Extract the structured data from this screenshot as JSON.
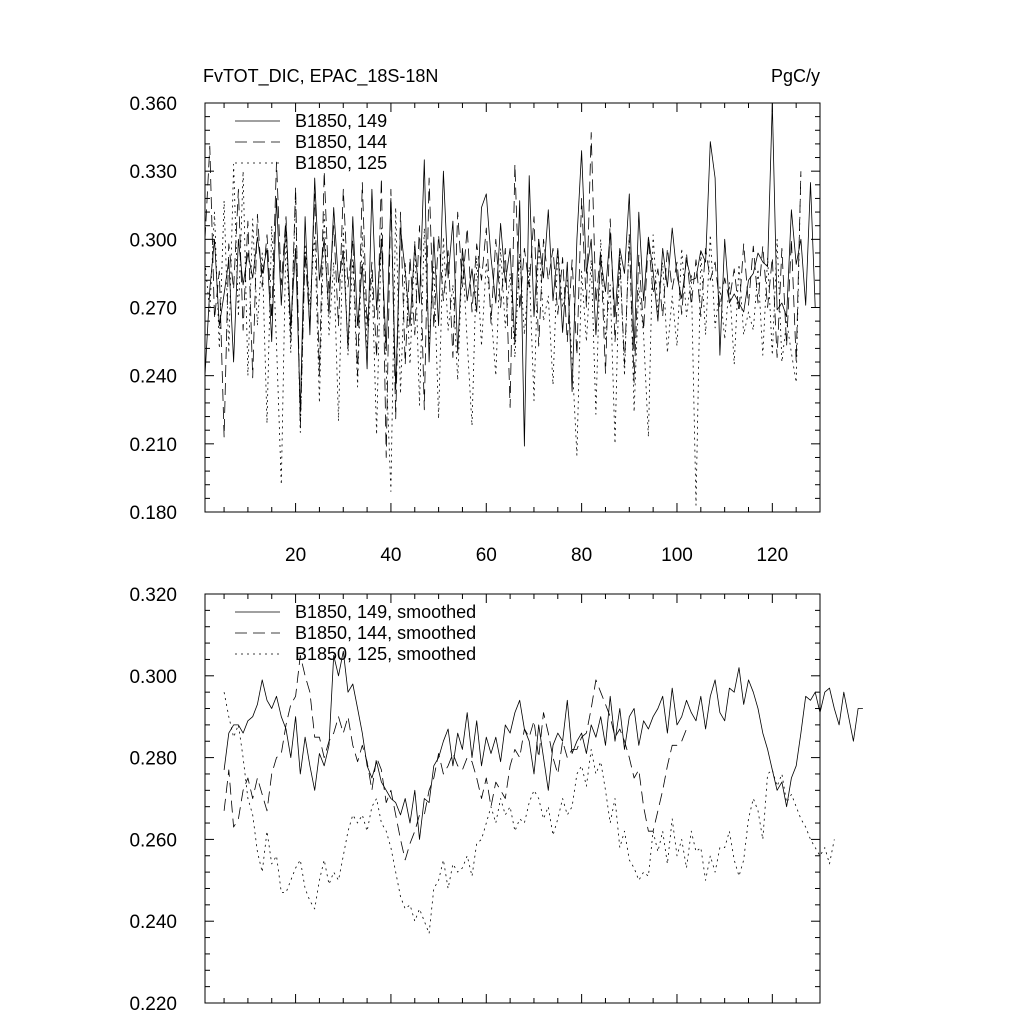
{
  "chart_data": [
    {
      "type": "line",
      "title": "FvTOT_DIC, EPAC_18S-18N",
      "units": "PgC/y",
      "xlim": [
        1,
        130
      ],
      "ylim": [
        0.18,
        0.36
      ],
      "xticks": [
        20,
        40,
        60,
        80,
        100,
        120
      ],
      "yticks": [
        "0.180",
        "0.210",
        "0.240",
        "0.270",
        "0.300",
        "0.330",
        "0.360"
      ],
      "legend_position": "top-left",
      "series": [
        {
          "name": "B1850, 149",
          "style": "solid",
          "x_start": 1,
          "values": [
            0.24,
            0.278,
            0.3,
            0.262,
            0.276,
            0.291,
            0.246,
            0.3,
            0.28,
            0.294,
            0.283,
            0.301,
            0.285,
            0.296,
            0.255,
            0.318,
            0.271,
            0.307,
            0.262,
            0.296,
            0.224,
            0.31,
            0.258,
            0.327,
            0.282,
            0.3,
            0.267,
            0.314,
            0.281,
            0.295,
            0.252,
            0.31,
            0.262,
            0.289,
            0.243,
            0.322,
            0.269,
            0.3,
            0.251,
            0.318,
            0.234,
            0.305,
            0.286,
            0.262,
            0.298,
            0.272,
            0.335,
            0.246,
            0.301,
            0.262,
            0.33,
            0.283,
            0.308,
            0.25,
            0.296,
            0.273,
            0.287,
            0.268,
            0.314,
            0.32,
            0.292,
            0.272,
            0.307,
            0.281,
            0.296,
            0.254,
            0.317,
            0.209,
            0.328,
            0.266,
            0.3,
            0.283,
            0.313,
            0.273,
            0.296,
            0.259,
            0.29,
            0.233,
            0.3,
            0.339,
            0.285,
            0.3,
            0.258,
            0.291,
            0.277,
            0.303,
            0.266,
            0.296,
            0.285,
            0.32,
            0.251,
            0.312,
            0.273,
            0.301,
            0.286,
            0.264,
            0.296,
            0.279,
            0.305,
            0.284,
            0.274,
            0.291,
            0.282,
            0.283,
            0.295,
            0.29,
            0.343,
            0.327,
            0.249,
            0.3,
            0.272,
            0.276,
            0.272,
            0.268,
            0.282,
            0.285,
            0.294,
            0.29,
            0.288,
            0.36,
            0.269,
            0.272,
            0.266,
            0.313,
            0.289,
            0.3,
            0.271,
            0.325,
            0.27
          ]
        },
        {
          "name": "B1850, 144",
          "style": "dashed",
          "x_start": 1,
          "values": [
            0.3,
            0.341,
            0.265,
            0.286,
            0.213,
            0.298,
            0.278,
            0.322,
            0.26,
            0.308,
            0.239,
            0.311,
            0.279,
            0.302,
            0.265,
            0.334,
            0.28,
            0.31,
            0.255,
            0.323,
            0.217,
            0.294,
            0.261,
            0.32,
            0.24,
            0.33,
            0.276,
            0.306,
            0.262,
            0.322,
            0.279,
            0.3,
            0.24,
            0.325,
            0.262,
            0.29,
            0.248,
            0.327,
            0.204,
            0.322,
            0.221,
            0.312,
            0.245,
            0.292,
            0.258,
            0.306,
            0.225,
            0.327,
            0.261,
            0.302,
            0.273,
            0.295,
            0.248,
            0.312,
            0.279,
            0.305,
            0.268,
            0.298,
            0.282,
            0.305,
            0.263,
            0.3,
            0.27,
            0.296,
            0.226,
            0.333,
            0.269,
            0.296,
            0.279,
            0.31,
            0.253,
            0.3,
            0.282,
            0.296,
            0.267,
            0.292,
            0.255,
            0.291,
            0.249,
            0.318,
            0.27,
            0.347,
            0.272,
            0.295,
            0.241,
            0.309,
            0.255,
            0.291,
            0.245,
            0.301,
            0.237,
            0.293,
            0.26,
            0.3,
            0.276,
            0.287,
            0.266,
            0.296,
            0.278,
            0.29,
            0.267,
            0.294,
            0.271,
            0.291,
            0.266,
            0.296,
            0.282,
            0.29,
            0.27,
            0.283,
            0.273,
            0.287,
            0.268,
            0.298,
            0.271,
            0.297,
            0.272,
            0.297,
            0.27,
            0.292,
            0.248,
            0.296,
            0.253,
            0.3,
            0.246,
            0.33
          ]
        },
        {
          "name": "B1850, 125",
          "style": "dotted",
          "x_start": 1,
          "values": [
            0.29,
            0.268,
            0.312,
            0.252,
            0.317,
            0.25,
            0.333,
            0.266,
            0.33,
            0.24,
            0.309,
            0.262,
            0.294,
            0.219,
            0.306,
            0.254,
            0.192,
            0.302,
            0.25,
            0.32,
            0.215,
            0.298,
            0.271,
            0.302,
            0.228,
            0.311,
            0.258,
            0.29,
            0.22,
            0.305,
            0.249,
            0.292,
            0.235,
            0.303,
            0.252,
            0.285,
            0.214,
            0.305,
            0.243,
            0.189,
            0.314,
            0.232,
            0.29,
            0.245,
            0.299,
            0.227,
            0.305,
            0.254,
            0.288,
            0.221,
            0.301,
            0.26,
            0.28,
            0.238,
            0.294,
            0.255,
            0.218,
            0.292,
            0.253,
            0.29,
            0.268,
            0.24,
            0.296,
            0.261,
            0.285,
            0.248,
            0.294,
            0.258,
            0.288,
            0.229,
            0.3,
            0.264,
            0.275,
            0.236,
            0.296,
            0.27,
            0.282,
            0.247,
            0.205,
            0.286,
            0.255,
            0.291,
            0.223,
            0.3,
            0.256,
            0.28,
            0.21,
            0.295,
            0.24,
            0.303,
            0.224,
            0.279,
            0.258,
            0.213,
            0.302,
            0.268,
            0.29,
            0.25,
            0.275,
            0.253,
            0.296,
            0.266,
            0.284,
            0.183,
            0.294,
            0.258,
            0.302,
            0.261,
            0.279,
            0.256,
            0.281,
            0.245,
            0.289,
            0.258,
            0.268,
            0.26,
            0.287,
            0.249,
            0.292,
            0.249,
            0.3,
            0.246,
            0.264,
            0.25,
            0.237,
            0.33
          ]
        }
      ]
    },
    {
      "type": "line",
      "title": "",
      "xlim": [
        1,
        130
      ],
      "ylim": [
        0.22,
        0.32
      ],
      "yticks": [
        "0.220",
        "0.240",
        "0.260",
        "0.280",
        "0.300",
        "0.320"
      ],
      "legend_position": "top-left",
      "series": [
        {
          "name": "B1850, 149, smoothed",
          "style": "solid",
          "x_start": 5,
          "values": [
            0.277,
            0.286,
            0.288,
            0.288,
            0.286,
            0.289,
            0.29,
            0.293,
            0.299,
            0.294,
            0.292,
            0.295,
            0.29,
            0.287,
            0.28,
            0.29,
            0.276,
            0.285,
            0.278,
            0.272,
            0.281,
            0.278,
            0.283,
            0.305,
            0.3,
            0.306,
            0.296,
            0.298,
            0.292,
            0.286,
            0.278,
            0.275,
            0.279,
            0.274,
            0.272,
            0.27,
            0.269,
            0.266,
            0.27,
            0.264,
            0.272,
            0.26,
            0.27,
            0.269,
            0.278,
            0.28,
            0.284,
            0.287,
            0.278,
            0.286,
            0.282,
            0.291,
            0.28,
            0.289,
            0.278,
            0.285,
            0.281,
            0.285,
            0.279,
            0.288,
            0.286,
            0.291,
            0.294,
            0.287,
            0.284,
            0.276,
            0.288,
            0.28,
            0.272,
            0.283,
            0.286,
            0.284,
            0.294,
            0.281,
            0.284,
            0.286,
            0.281,
            0.288,
            0.285,
            0.29,
            0.283,
            0.295,
            0.284,
            0.292,
            0.282,
            0.29,
            0.292,
            0.283,
            0.289,
            0.287,
            0.29,
            0.292,
            0.295,
            0.286,
            0.297,
            0.288,
            0.29,
            0.294,
            0.291,
            0.289,
            0.295,
            0.287,
            0.295,
            0.299,
            0.291,
            0.289,
            0.297,
            0.296,
            0.302,
            0.293,
            0.299,
            0.296,
            0.292,
            0.286,
            0.282,
            0.277,
            0.272,
            0.274,
            0.268,
            0.275,
            0.278,
            0.286,
            0.295,
            0.294,
            0.296,
            0.291,
            0.296,
            0.297,
            0.292,
            0.288,
            0.296,
            0.29,
            0.284,
            0.292,
            0.292
          ]
        },
        {
          "name": "B1850, 144, smoothed",
          "style": "dashed",
          "x_start": 5,
          "values": [
            0.267,
            0.277,
            0.263,
            0.265,
            0.272,
            0.275,
            0.27,
            0.275,
            0.271,
            0.267,
            0.276,
            0.28,
            0.281,
            0.288,
            0.293,
            0.295,
            0.305,
            0.3,
            0.296,
            0.285,
            0.285,
            0.28,
            0.284,
            0.286,
            0.29,
            0.286,
            0.29,
            0.283,
            0.279,
            0.283,
            0.279,
            0.272,
            0.28,
            0.277,
            0.269,
            0.272,
            0.266,
            0.26,
            0.255,
            0.259,
            0.262,
            0.266,
            0.266,
            0.272,
            0.275,
            0.281,
            0.276,
            0.278,
            0.281,
            0.278,
            0.277,
            0.28,
            0.279,
            0.275,
            0.27,
            0.275,
            0.268,
            0.274,
            0.272,
            0.27,
            0.278,
            0.282,
            0.28,
            0.287,
            0.285,
            0.289,
            0.28,
            0.291,
            0.286,
            0.28,
            0.276,
            0.284,
            0.28,
            0.282,
            0.282,
            0.285,
            0.286,
            0.292,
            0.299,
            0.296,
            0.293,
            0.29,
            0.285,
            0.287,
            0.284,
            0.28,
            0.275,
            0.277,
            0.268,
            0.262,
            0.262,
            0.267,
            0.272,
            0.278,
            0.283,
            0.283,
            0.284,
            0.287
          ]
        },
        {
          "name": "B1850, 125, smoothed",
          "style": "dotted",
          "x_start": 5,
          "values": [
            0.296,
            0.29,
            0.285,
            0.288,
            0.28,
            0.27,
            0.266,
            0.257,
            0.252,
            0.262,
            0.254,
            0.256,
            0.247,
            0.247,
            0.25,
            0.253,
            0.255,
            0.248,
            0.245,
            0.243,
            0.25,
            0.255,
            0.249,
            0.252,
            0.25,
            0.256,
            0.262,
            0.266,
            0.264,
            0.266,
            0.262,
            0.268,
            0.27,
            0.264,
            0.262,
            0.258,
            0.252,
            0.246,
            0.243,
            0.244,
            0.24,
            0.243,
            0.24,
            0.237,
            0.248,
            0.25,
            0.255,
            0.248,
            0.254,
            0.252,
            0.253,
            0.256,
            0.251,
            0.259,
            0.26,
            0.264,
            0.268,
            0.264,
            0.27,
            0.266,
            0.268,
            0.262,
            0.265,
            0.264,
            0.269,
            0.272,
            0.27,
            0.265,
            0.268,
            0.261,
            0.265,
            0.27,
            0.266,
            0.268,
            0.276,
            0.278,
            0.273,
            0.282,
            0.276,
            0.279,
            0.272,
            0.264,
            0.27,
            0.258,
            0.262,
            0.255,
            0.253,
            0.25,
            0.252,
            0.251,
            0.262,
            0.257,
            0.262,
            0.254,
            0.265,
            0.256,
            0.26,
            0.253,
            0.262,
            0.257,
            0.258,
            0.25,
            0.256,
            0.252,
            0.258,
            0.258,
            0.262,
            0.255,
            0.251,
            0.255,
            0.265,
            0.27,
            0.267,
            0.26,
            0.276,
            0.277,
            0.273,
            0.276,
            0.269,
            0.271,
            0.268,
            0.265,
            0.263,
            0.26,
            0.258,
            0.256,
            0.258,
            0.254,
            0.26
          ]
        }
      ]
    }
  ]
}
